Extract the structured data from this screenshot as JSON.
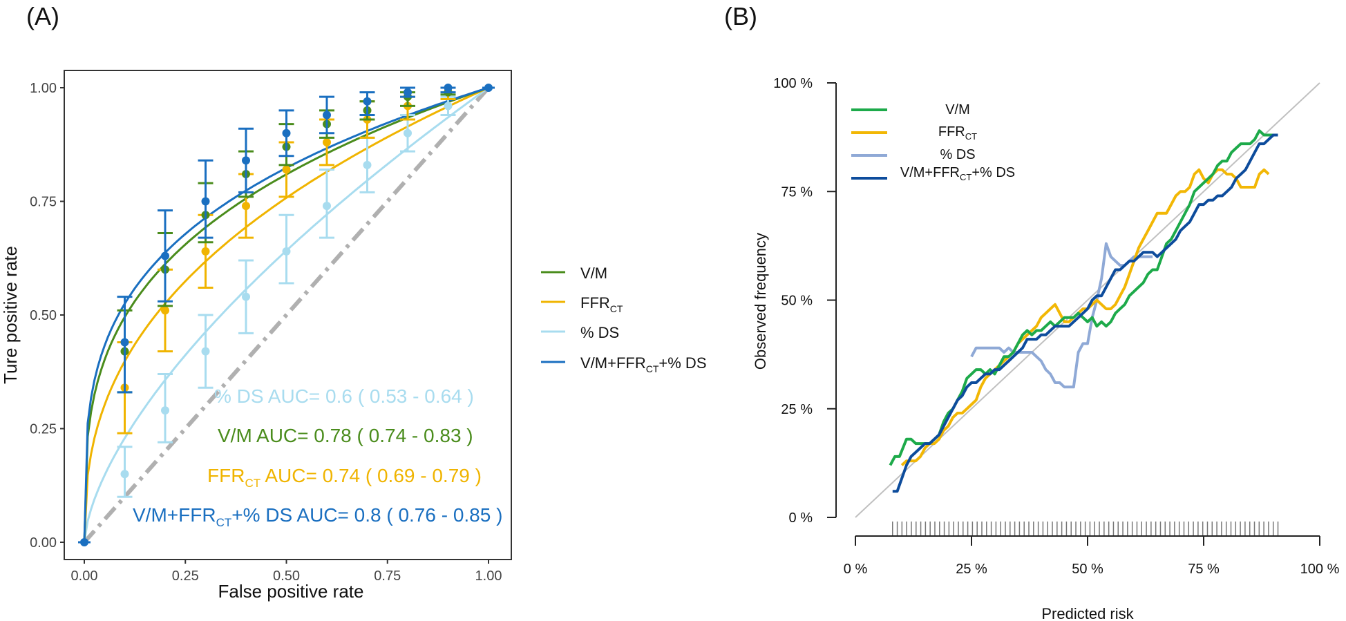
{
  "chart_data": [
    {
      "panel_label": "(A)",
      "type": "line",
      "title": "",
      "xlabel": "False positive rate",
      "ylabel": "Ture positive rate",
      "xlim": [
        0,
        1
      ],
      "ylim": [
        0,
        1
      ],
      "x_ticks": [
        "0.00",
        "0.25",
        "0.50",
        "0.75",
        "1.00"
      ],
      "y_ticks": [
        "0.00",
        "0.25",
        "0.50",
        "0.75",
        "1.00"
      ],
      "grid": false,
      "legend_position": "right",
      "reference_line": {
        "x": [
          0,
          1
        ],
        "y": [
          0,
          1
        ],
        "style": "dash-dot",
        "color": "#b0b0b0"
      },
      "series": [
        {
          "key": "vm",
          "name": "V/M",
          "color": "#4a8c1c",
          "auc_label": "V/M AUC= 0.78 ( 0.74 - 0.83 )",
          "curve_exponent": 0.305,
          "points": [
            {
              "x": 0.1,
              "y": 0.42,
              "lo": 0.33,
              "hi": 0.51
            },
            {
              "x": 0.2,
              "y": 0.6,
              "lo": 0.52,
              "hi": 0.68
            },
            {
              "x": 0.3,
              "y": 0.72,
              "lo": 0.66,
              "hi": 0.79
            },
            {
              "x": 0.4,
              "y": 0.81,
              "lo": 0.76,
              "hi": 0.86
            },
            {
              "x": 0.5,
              "y": 0.87,
              "lo": 0.83,
              "hi": 0.92
            },
            {
              "x": 0.6,
              "y": 0.92,
              "lo": 0.89,
              "hi": 0.95
            },
            {
              "x": 0.7,
              "y": 0.95,
              "lo": 0.93,
              "hi": 0.97
            },
            {
              "x": 0.8,
              "y": 0.98,
              "lo": 0.96,
              "hi": 0.99
            },
            {
              "x": 0.9,
              "y": 0.99,
              "lo": 0.985,
              "hi": 1.0
            }
          ]
        },
        {
          "key": "ffr",
          "name": "FFR",
          "name_sub": "CT",
          "color": "#f0b400",
          "auc_label": "FFR",
          "auc_label_sub": "CT",
          "auc_label_rest": " AUC= 0.74 ( 0.69 - 0.79 )",
          "curve_exponent": 0.4,
          "points": [
            {
              "x": 0.1,
              "y": 0.34,
              "lo": 0.24,
              "hi": 0.44
            },
            {
              "x": 0.2,
              "y": 0.51,
              "lo": 0.42,
              "hi": 0.6
            },
            {
              "x": 0.3,
              "y": 0.64,
              "lo": 0.56,
              "hi": 0.72
            },
            {
              "x": 0.4,
              "y": 0.74,
              "lo": 0.67,
              "hi": 0.81
            },
            {
              "x": 0.5,
              "y": 0.82,
              "lo": 0.76,
              "hi": 0.88
            },
            {
              "x": 0.6,
              "y": 0.88,
              "lo": 0.83,
              "hi": 0.93
            },
            {
              "x": 0.7,
              "y": 0.93,
              "lo": 0.89,
              "hi": 0.97
            },
            {
              "x": 0.8,
              "y": 0.96,
              "lo": 0.93,
              "hi": 0.98
            },
            {
              "x": 0.9,
              "y": 0.99,
              "lo": 0.975,
              "hi": 1.0
            }
          ]
        },
        {
          "key": "ds",
          "name": "% DS",
          "color": "#a8dcef",
          "auc_label": "% DS AUC= 0.6 ( 0.53 - 0.64 )",
          "curve_exponent": 0.64,
          "points": [
            {
              "x": 0.1,
              "y": 0.15,
              "lo": 0.1,
              "hi": 0.21
            },
            {
              "x": 0.2,
              "y": 0.29,
              "lo": 0.22,
              "hi": 0.37
            },
            {
              "x": 0.3,
              "y": 0.42,
              "lo": 0.34,
              "hi": 0.5
            },
            {
              "x": 0.4,
              "y": 0.54,
              "lo": 0.46,
              "hi": 0.62
            },
            {
              "x": 0.5,
              "y": 0.64,
              "lo": 0.57,
              "hi": 0.72
            },
            {
              "x": 0.6,
              "y": 0.74,
              "lo": 0.67,
              "hi": 0.82
            },
            {
              "x": 0.7,
              "y": 0.83,
              "lo": 0.77,
              "hi": 0.89
            },
            {
              "x": 0.8,
              "y": 0.9,
              "lo": 0.86,
              "hi": 0.94
            },
            {
              "x": 0.9,
              "y": 0.96,
              "lo": 0.94,
              "hi": 0.98
            }
          ]
        },
        {
          "key": "combo",
          "name": "V/M+FFR",
          "name_sub": "CT",
          "name_rest": "+% DS",
          "color": "#1a6fc0",
          "auc_label": "V/M+FFR",
          "auc_label_sub": "CT",
          "auc_label_rest": "+% DS AUC= 0.8 ( 0.76 - 0.85 )",
          "curve_exponent": 0.28,
          "points": [
            {
              "x": 0.1,
              "y": 0.44,
              "lo": 0.33,
              "hi": 0.54
            },
            {
              "x": 0.2,
              "y": 0.63,
              "lo": 0.53,
              "hi": 0.73
            },
            {
              "x": 0.3,
              "y": 0.75,
              "lo": 0.67,
              "hi": 0.84
            },
            {
              "x": 0.4,
              "y": 0.84,
              "lo": 0.77,
              "hi": 0.91
            },
            {
              "x": 0.5,
              "y": 0.9,
              "lo": 0.85,
              "hi": 0.95
            },
            {
              "x": 0.6,
              "y": 0.94,
              "lo": 0.9,
              "hi": 0.98
            },
            {
              "x": 0.7,
              "y": 0.97,
              "lo": 0.94,
              "hi": 0.99
            },
            {
              "x": 0.8,
              "y": 0.99,
              "lo": 0.98,
              "hi": 1.0
            },
            {
              "x": 0.9,
              "y": 1.0,
              "lo": 0.99,
              "hi": 1.0
            }
          ]
        }
      ]
    },
    {
      "panel_label": "(B)",
      "type": "line",
      "title": "",
      "xlabel": "Predicted risk",
      "ylabel": "Observed frequency",
      "xlim": [
        0,
        100
      ],
      "ylim": [
        0,
        100
      ],
      "x_ticks": [
        "0 %",
        "25 %",
        "50 %",
        "75 %",
        "100 %"
      ],
      "y_ticks": [
        "0 %",
        "25 %",
        "50 %",
        "75 %",
        "100 %"
      ],
      "grid": false,
      "legend_position": "top-left",
      "reference_line": {
        "x": [
          0,
          100
        ],
        "y": [
          0,
          100
        ],
        "color": "#c0c0c0"
      },
      "rug": {
        "from": 8,
        "to": 91,
        "count": 83,
        "color": "#777777"
      },
      "series": [
        {
          "key": "vm",
          "name": "V/M",
          "color": "#1daa4a",
          "x": [
            7.5,
            8.5,
            9.5,
            11,
            12,
            13,
            14,
            15,
            16,
            17,
            18,
            19,
            20,
            21,
            22,
            23,
            24,
            25,
            26,
            27,
            28,
            29,
            30,
            31,
            32,
            33,
            34,
            35,
            36,
            37,
            38,
            39,
            40,
            41,
            42,
            43,
            44,
            45,
            46,
            47,
            48,
            49,
            50,
            51,
            52,
            53,
            54,
            55,
            56,
            57,
            58,
            59,
            60,
            61,
            62,
            63,
            64,
            65,
            66,
            67,
            68,
            69,
            70,
            71,
            72,
            73,
            74,
            75,
            76,
            77,
            78,
            79,
            80,
            81,
            82,
            83,
            84,
            85,
            86,
            87,
            88,
            89,
            90
          ],
          "y": [
            12,
            14,
            14,
            18,
            18,
            17,
            17,
            17,
            17,
            18,
            19,
            22,
            24,
            25,
            27,
            29,
            32,
            33,
            34,
            34,
            33,
            34,
            33,
            35,
            37,
            37,
            38,
            40,
            42,
            43,
            42,
            43,
            43,
            44,
            45,
            44,
            45,
            46,
            46,
            46,
            47,
            46,
            45,
            46,
            44,
            45,
            44,
            45,
            47,
            48,
            49,
            51,
            52,
            53,
            54,
            56,
            57,
            57,
            60,
            63,
            64,
            66,
            68,
            70,
            72,
            75,
            76,
            77,
            78,
            79,
            81,
            82,
            82,
            84,
            85,
            86,
            86,
            86,
            87,
            89,
            88,
            88,
            88
          ]
        },
        {
          "key": "ffr",
          "name": "FFR",
          "name_sub": "CT",
          "color": "#f2b705",
          "x": [
            10,
            11,
            12,
            13,
            14,
            15,
            16,
            17,
            18,
            19,
            20,
            21,
            22,
            23,
            24,
            25,
            26,
            27,
            28,
            29,
            30,
            31,
            32,
            33,
            34,
            35,
            36,
            37,
            38,
            39,
            40,
            41,
            42,
            43,
            44,
            45,
            46,
            47,
            48,
            49,
            50,
            51,
            52,
            53,
            54,
            55,
            56,
            57,
            58,
            59,
            60,
            61,
            62,
            63,
            64,
            65,
            66,
            67,
            68,
            69,
            70,
            71,
            72,
            73,
            74,
            75,
            76,
            77,
            78,
            79,
            80,
            81,
            82,
            83,
            84,
            85,
            86,
            87,
            88,
            89
          ],
          "y": [
            12,
            13,
            13,
            13,
            14,
            16,
            17,
            17,
            18,
            20,
            21,
            23,
            24,
            24,
            25,
            26,
            27,
            30,
            32,
            33,
            34,
            35,
            36,
            37,
            38,
            40,
            41,
            42,
            43,
            44,
            46,
            47,
            48,
            49,
            47,
            45,
            45,
            46,
            47,
            48,
            48,
            49,
            50,
            49,
            48,
            48,
            49,
            51,
            53,
            56,
            59,
            62,
            64,
            66,
            68,
            70,
            70,
            70,
            72,
            74,
            75,
            75,
            76,
            79,
            80,
            78,
            77,
            79,
            80,
            80,
            79,
            79,
            78,
            76,
            76,
            76,
            76,
            79,
            80,
            79
          ]
        },
        {
          "key": "ds",
          "name": "% DS",
          "color": "#8fa9d6",
          "x": [
            25,
            26,
            27,
            28,
            29,
            30,
            31,
            32,
            33,
            34,
            35,
            36,
            37,
            38,
            39,
            40,
            41,
            42,
            43,
            44,
            45,
            46,
            47,
            48,
            49,
            50,
            51,
            52,
            53,
            54,
            55,
            56,
            57,
            58,
            59,
            60,
            61,
            62,
            63,
            64
          ],
          "y": [
            37,
            39,
            39,
            39,
            39,
            39,
            39,
            38,
            39,
            38,
            38,
            38,
            38,
            38,
            37,
            36,
            34,
            33,
            31,
            31,
            30,
            30,
            30,
            38,
            40,
            40,
            46,
            50,
            55,
            63,
            60,
            59,
            58,
            58,
            59,
            60,
            60,
            60,
            60,
            60
          ]
        },
        {
          "key": "combo",
          "name": "V/M+FFR",
          "name_sub": "CT",
          "name_rest": "+% DS",
          "color": "#0d4c9c",
          "x": [
            8,
            9,
            10,
            11,
            12,
            13,
            14,
            15,
            16,
            17,
            18,
            19,
            20,
            21,
            22,
            23,
            24,
            25,
            26,
            27,
            28,
            29,
            30,
            31,
            32,
            33,
            34,
            35,
            36,
            37,
            38,
            39,
            40,
            41,
            42,
            43,
            44,
            45,
            46,
            47,
            48,
            49,
            50,
            51,
            52,
            53,
            54,
            55,
            56,
            57,
            58,
            59,
            60,
            61,
            62,
            63,
            64,
            65,
            66,
            67,
            68,
            69,
            70,
            71,
            72,
            73,
            74,
            75,
            76,
            77,
            78,
            79,
            80,
            81,
            82,
            83,
            84,
            85,
            86,
            87,
            88,
            89,
            90,
            91
          ],
          "y": [
            6,
            6,
            9,
            12,
            14,
            15,
            16,
            17,
            17,
            18,
            19,
            21,
            23,
            25,
            27,
            28,
            30,
            31,
            31,
            32,
            33,
            33,
            34,
            34,
            35,
            36,
            37,
            38,
            39,
            41,
            41,
            41,
            42,
            42,
            43,
            44,
            44,
            44,
            44,
            45,
            46,
            47,
            48,
            50,
            51,
            51,
            53,
            55,
            57,
            57,
            58,
            59,
            59,
            60,
            61,
            61,
            61,
            60,
            61,
            62,
            63,
            64,
            66,
            67,
            68,
            70,
            72,
            72,
            73,
            73,
            74,
            74,
            75,
            76,
            78,
            79,
            80,
            82,
            84,
            86,
            86,
            87,
            88,
            88
          ]
        }
      ]
    }
  ]
}
